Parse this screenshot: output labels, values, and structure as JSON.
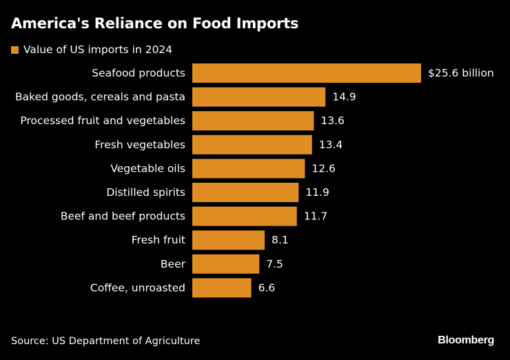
{
  "colors": {
    "background": "#000000",
    "bar": "#e08e24",
    "text": "#ffffff"
  },
  "chart_data": {
    "type": "bar",
    "orientation": "horizontal",
    "title": "America's Reliance on Food Imports",
    "legend": [
      "Value of US imports in 2024"
    ],
    "legend_position": "top-left",
    "categories": [
      "Seafood products",
      "Baked goods, cereals and pasta",
      "Processed fruit and vegetables",
      "Fresh vegetables",
      "Vegetable oils",
      "Distilled spirits",
      "Beef and beef products",
      "Fresh fruit",
      "Beer",
      "Coffee, unroasted"
    ],
    "values": [
      25.6,
      14.9,
      13.6,
      13.4,
      12.6,
      11.9,
      11.7,
      8.1,
      7.5,
      6.6
    ],
    "value_labels": [
      "$25.6 billion",
      "14.9",
      "13.6",
      "13.4",
      "12.6",
      "11.9",
      "11.7",
      "8.1",
      "7.5",
      "6.6"
    ],
    "unit": "billion USD",
    "xlim": [
      0,
      25.6
    ],
    "grid": false,
    "xlabel": "",
    "ylabel": ""
  },
  "footer": {
    "source": "Source: US Department of Agriculture",
    "brand": "Bloomberg"
  }
}
